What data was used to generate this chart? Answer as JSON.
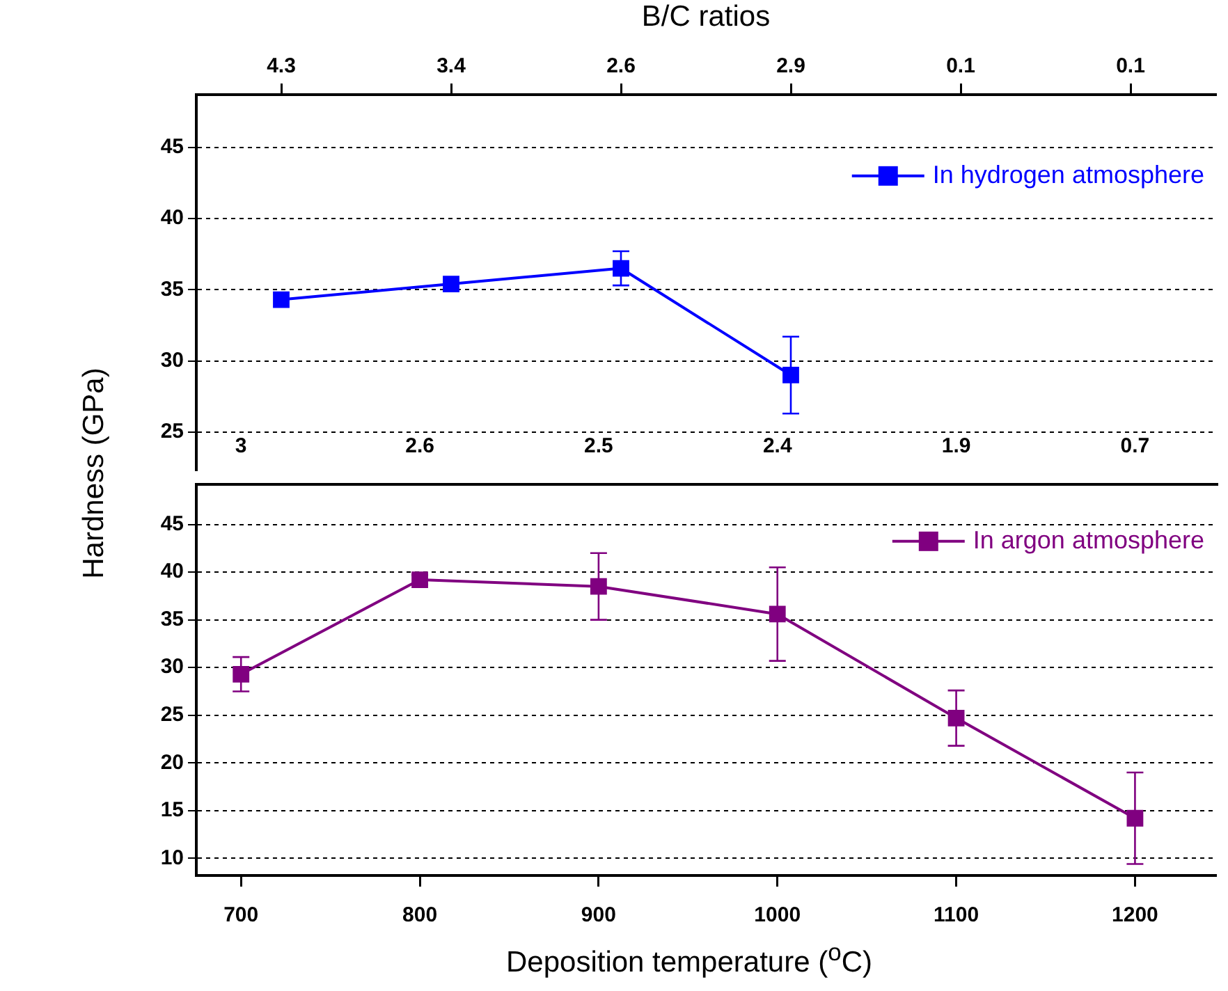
{
  "chart_data": [
    {
      "type": "line",
      "x2label": "B/C ratios",
      "ylabel": "Hardness (GPa)",
      "categories": [
        "4.3",
        "3.4",
        "2.6",
        "2.9",
        "0.1",
        "0.1"
      ],
      "series": [
        {
          "name": "In hydrogen atmosphere",
          "color": "#0000ff",
          "values": [
            34.3,
            35.4,
            36.5,
            29.0,
            null,
            null
          ],
          "errors": [
            null,
            null,
            1.2,
            2.7,
            null,
            null
          ]
        }
      ],
      "ylim": [
        22.3,
        48.7
      ],
      "yticks": [
        25,
        30,
        35,
        40,
        45
      ],
      "grid": "y",
      "legend": "top right",
      "marker": "square"
    },
    {
      "type": "line",
      "xlabel": "Deposition temperature ($^{o}$C)",
      "x": [
        700,
        800,
        900,
        1000,
        1100,
        1200
      ],
      "series": [
        {
          "name": "In argon atmosphere",
          "color": "#800080",
          "values": [
            29.3,
            39.2,
            38.5,
            35.6,
            24.7,
            14.2
          ],
          "errors": [
            1.8,
            0.5,
            3.5,
            4.9,
            2.9,
            4.8
          ]
        }
      ],
      "xlim": [
        675,
        1245
      ],
      "xticks": [
        700,
        800,
        900,
        1000,
        1100,
        1200
      ],
      "annotations": [
        "3",
        "2.6",
        "2.5",
        "2.4",
        "1.9",
        "0.7"
      ],
      "ylim": [
        8.2,
        49.2
      ],
      "yticks": [
        10,
        15,
        20,
        25,
        30,
        35,
        40,
        45
      ],
      "grid": "y",
      "legend": "top right",
      "marker": "square"
    }
  ]
}
